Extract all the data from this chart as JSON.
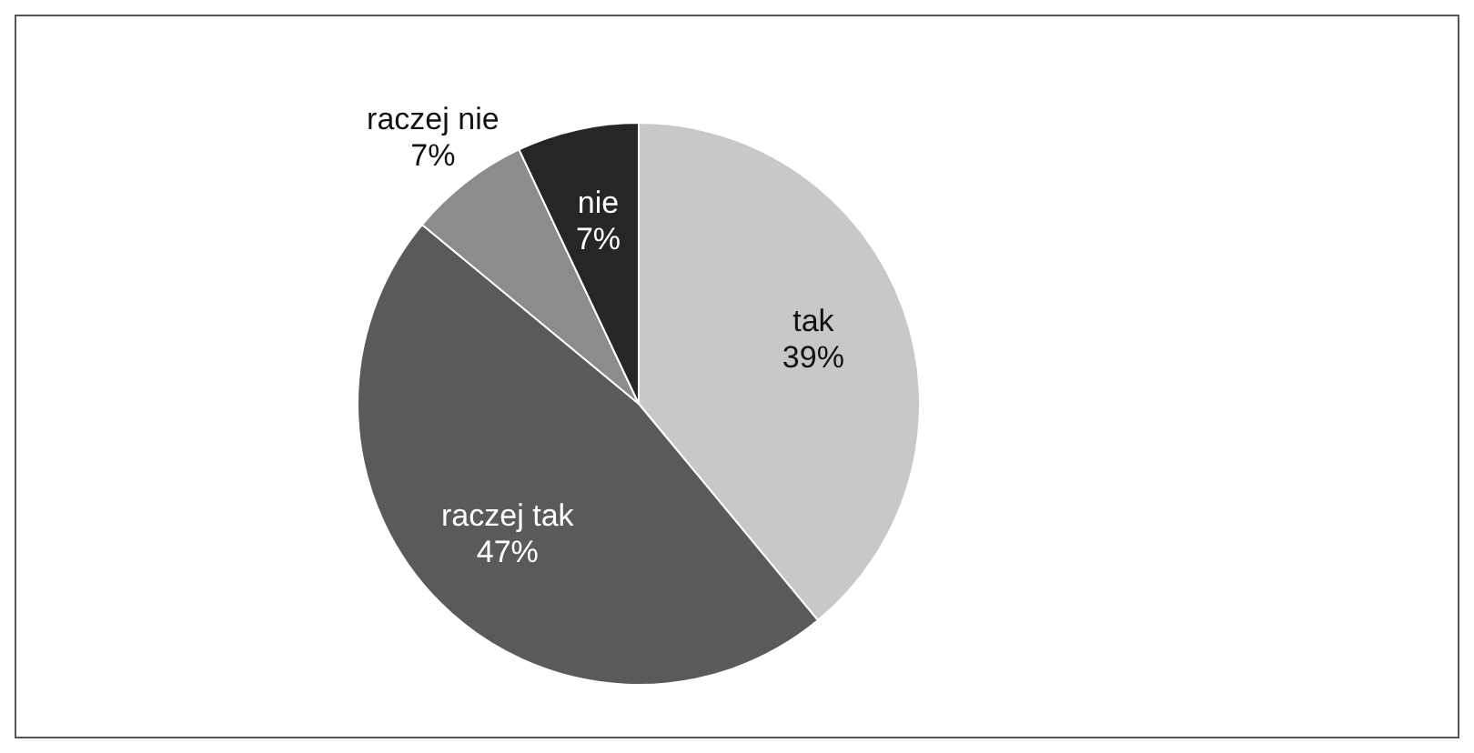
{
  "chart_data": {
    "type": "pie",
    "categories": [
      "tak",
      "raczej tak",
      "raczej nie",
      "nie"
    ],
    "values": [
      39,
      47,
      7,
      7
    ],
    "colors": [
      "#c8c8c8",
      "#5a5a5a",
      "#8c8c8c",
      "#262626"
    ],
    "value_labels": [
      "39%",
      "47%",
      "7%",
      "7%"
    ],
    "legend": false
  }
}
